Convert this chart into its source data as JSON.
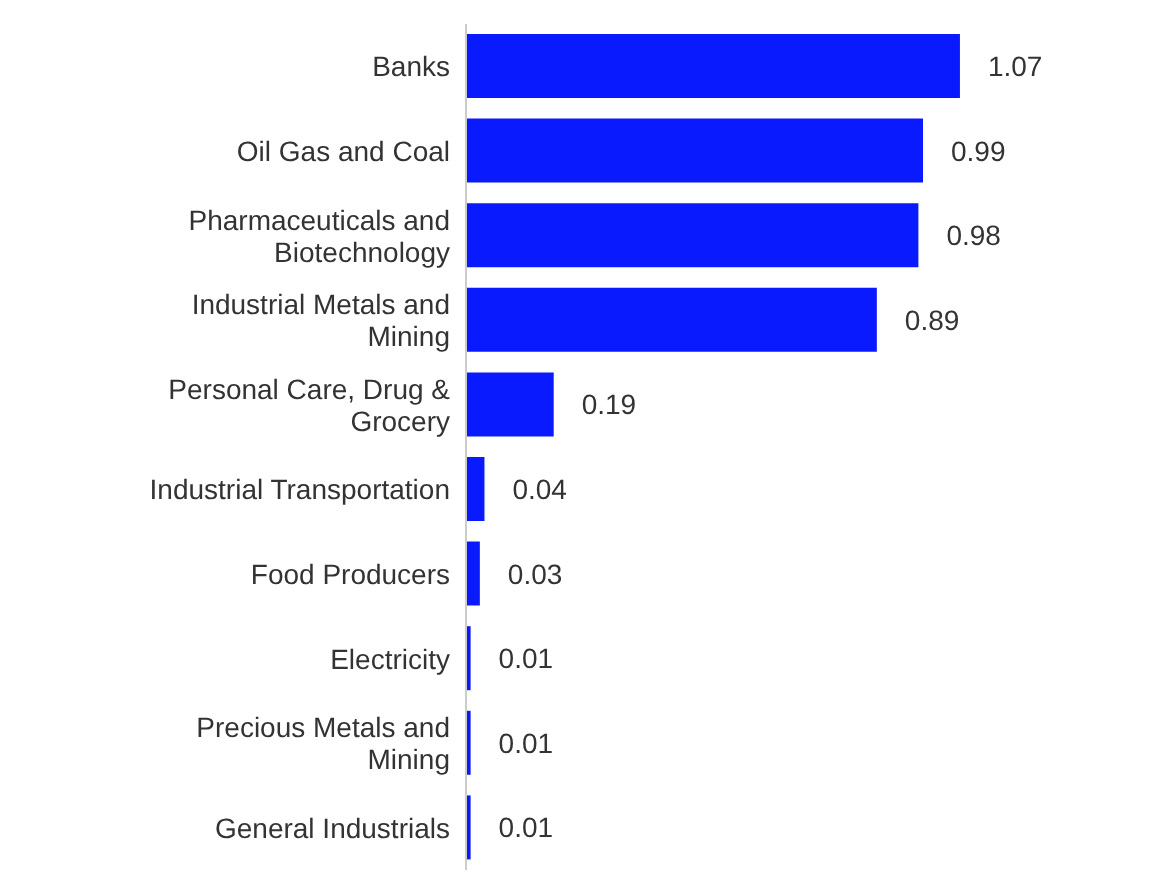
{
  "chart_data": {
    "type": "bar",
    "orientation": "horizontal",
    "categories": [
      "Banks",
      "Oil Gas and Coal",
      "Pharmaceuticals and Biotechnology",
      "Industrial Metals and Mining",
      "Personal Care, Drug & Grocery",
      "Industrial Transportation",
      "Food Producers",
      "Electricity",
      "Precious Metals and Mining",
      "General Industrials"
    ],
    "values": [
      1.07,
      0.99,
      0.98,
      0.89,
      0.19,
      0.04,
      0.03,
      0.01,
      0.01,
      0.01
    ],
    "color": "#0a1aff",
    "data_labels": true
  }
}
